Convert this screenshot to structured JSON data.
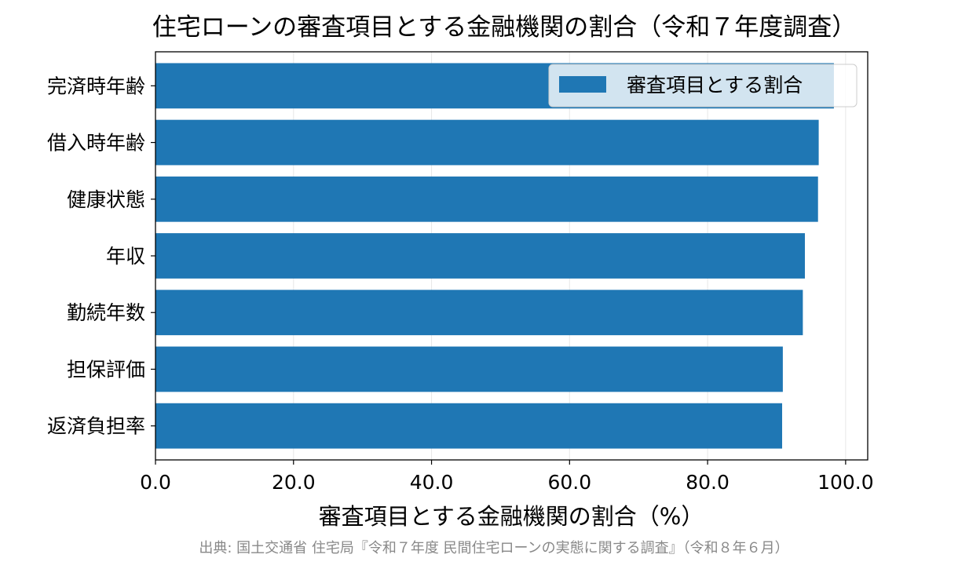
{
  "chart_data": {
    "type": "bar",
    "orientation": "horizontal",
    "title": "住宅ローンの審査項目とする金融機関の割合（令和７年度調査）",
    "categories": [
      "完済時年齢",
      "借入時年齢",
      "健康状態",
      "年収",
      "勤続年数",
      "担保評価",
      "返済負担率"
    ],
    "series": [
      {
        "name": "審査項目とする割合",
        "color": "#1f77b4",
        "values": [
          98.3,
          96.1,
          96.0,
          94.1,
          93.8,
          90.9,
          90.8
        ]
      }
    ],
    "xlabel": "審査項目とする金融機関の割合（%）",
    "ylabel": "",
    "xlim": [
      0,
      103.2
    ],
    "xticks": [
      "0.0",
      "20.0",
      "40.0",
      "60.0",
      "80.0",
      "100.0"
    ],
    "xtick_values": [
      0,
      20,
      40,
      60,
      80,
      100
    ],
    "grid": "vertical",
    "legend_position": "top-right",
    "source": "出典: 国土交通省 住宅局『令和７年度 民間住宅ローンの実態に関する調査』（令和８年６月）"
  }
}
